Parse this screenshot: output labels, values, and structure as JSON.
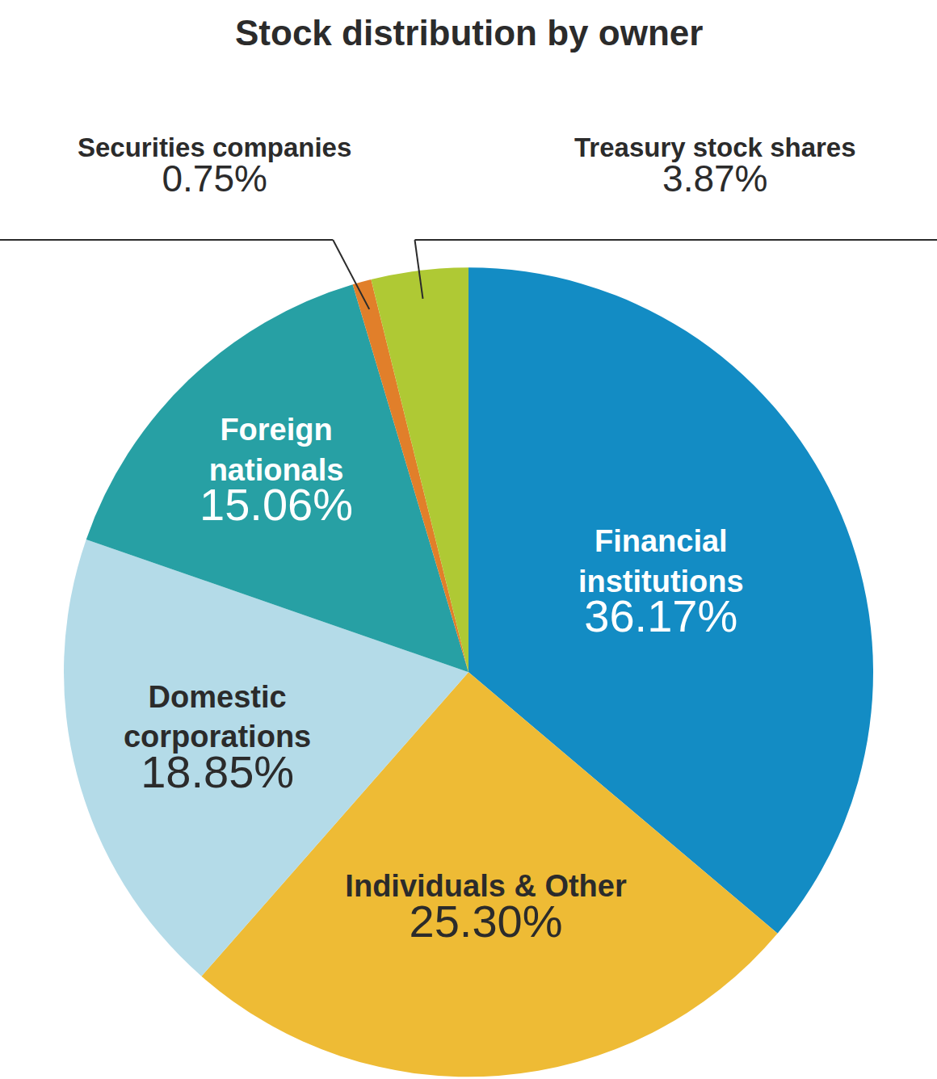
{
  "chart_data": {
    "type": "pie",
    "title": "Stock distribution by owner",
    "categories": [
      "Financial institutions",
      "Individuals & Other",
      "Domestic corporations",
      "Foreign nationals",
      "Securities companies",
      "Treasury stock shares"
    ],
    "values": [
      36.17,
      25.3,
      18.85,
      15.06,
      0.75,
      3.87
    ],
    "value_labels": [
      "36.17%",
      "25.30%",
      "18.85%",
      "15.06%",
      "0.75%",
      "3.87%"
    ],
    "colors": [
      "#138cc4",
      "#eebb35",
      "#b4dbe8",
      "#27a0a4",
      "#e17f2a",
      "#afc934"
    ],
    "data_labels": true
  }
}
